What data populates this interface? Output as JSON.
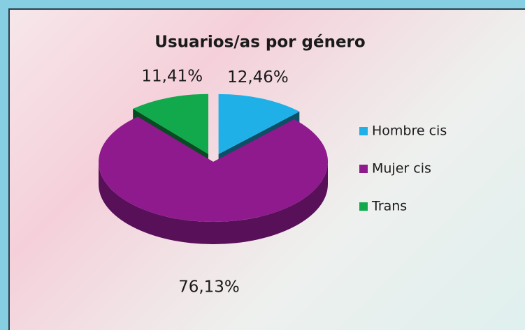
{
  "chart_data": {
    "type": "pie",
    "title": "Usuarios/as por género",
    "categories": [
      "Hombre cis",
      "Mujer cis",
      "Trans"
    ],
    "values": [
      12.46,
      76.13,
      11.41
    ],
    "value_labels": [
      "12,46%",
      "76,13%",
      "11,41%"
    ],
    "colors": [
      "#1fb0e8",
      "#8e1a8e",
      "#12a84c"
    ],
    "legend": "right",
    "style": "3d-exploded"
  }
}
